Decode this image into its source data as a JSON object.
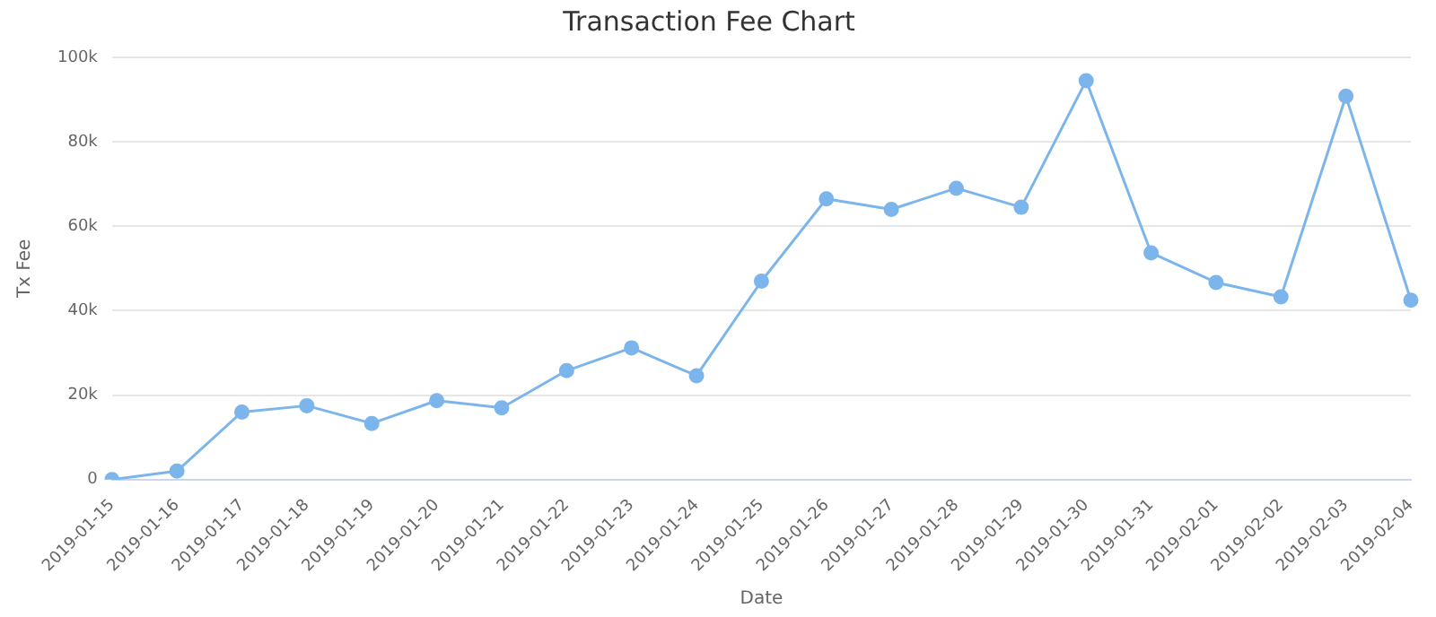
{
  "chart_data": {
    "type": "line",
    "title": "Transaction Fee Chart",
    "xlabel": "Date",
    "ylabel": "Tx Fee",
    "categories": [
      "2019-01-15",
      "2019-01-16",
      "2019-01-17",
      "2019-01-18",
      "2019-01-19",
      "2019-01-20",
      "2019-01-21",
      "2019-01-22",
      "2019-01-23",
      "2019-01-24",
      "2019-01-25",
      "2019-01-26",
      "2019-01-27",
      "2019-01-28",
      "2019-01-29",
      "2019-01-30",
      "2019-01-31",
      "2019-02-01",
      "2019-02-02",
      "2019-02-03",
      "2019-02-04"
    ],
    "series": [
      {
        "color": "#7cb5ec",
        "values": [
          0,
          2000,
          16000,
          17500,
          13300,
          18700,
          17000,
          25800,
          31200,
          24600,
          47000,
          66500,
          64000,
          69000,
          64500,
          94500,
          53700,
          46700,
          43300,
          90800,
          42500
        ]
      }
    ],
    "ylim": [
      0,
      100000
    ],
    "yticks": [
      {
        "value": 0,
        "label": "0"
      },
      {
        "value": 20000,
        "label": "20k"
      },
      {
        "value": 40000,
        "label": "40k"
      },
      {
        "value": 60000,
        "label": "60k"
      },
      {
        "value": 80000,
        "label": "80k"
      },
      {
        "value": 100000,
        "label": "100k"
      }
    ],
    "grid": "y",
    "legend": false,
    "marker": "circle",
    "line_style": "solid"
  }
}
